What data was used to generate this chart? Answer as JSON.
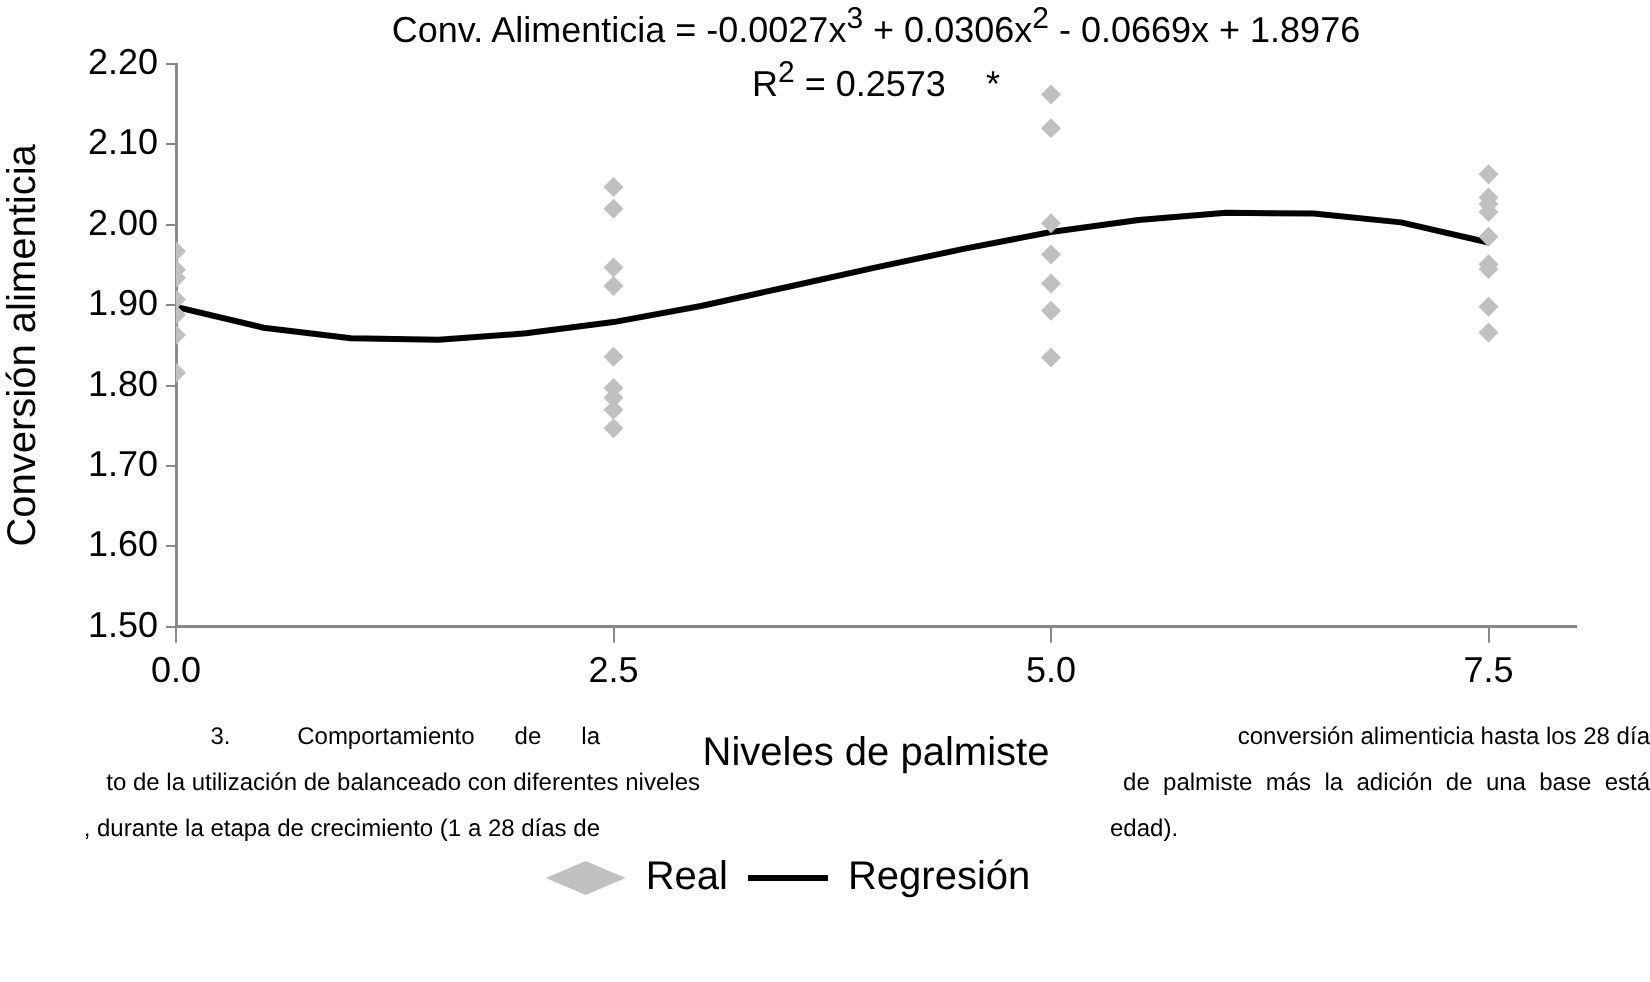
{
  "chart_data": {
    "type": "scatter",
    "title": "Conv. Alimenticia = -0.0027x$^{3}$ + 0.0306x$^{2}$ - 0.0669x + 1.8976",
    "subtitle": "R$^{2}$ = 0.2573    *",
    "xlabel": "Niveles de palmiste",
    "ylabel": "Conversión alimenticia",
    "xlim": [
      0,
      8
    ],
    "xticks": [
      {
        "value": 0,
        "label": "0.0"
      },
      2.5,
      {
        "value": 5,
        "label": "5.0"
      },
      7.5
    ],
    "ylim": [
      1.5,
      2.2
    ],
    "yticks": [
      {
        "value": 1.5,
        "label": "1.50"
      },
      {
        "value": 1.6,
        "label": "1.60"
      },
      {
        "value": 1.7,
        "label": "1.70"
      },
      {
        "value": 1.8,
        "label": "1.80"
      },
      {
        "value": 1.9,
        "label": "1.90"
      },
      {
        "value": 2.0,
        "label": "2.00"
      },
      {
        "value": 2.1,
        "label": "2.10"
      },
      {
        "value": 2.2,
        "label": "2.20"
      }
    ],
    "legend": "bottom",
    "series": [
      {
        "name": "Real",
        "type": "scatter",
        "marker": "diamond",
        "color": "#c0c0c0",
        "x": [
          0,
          0,
          0,
          0,
          0,
          0,
          0,
          2.5,
          2.5,
          2.5,
          2.5,
          2.5,
          2.5,
          2.5,
          2.5,
          2.5,
          5,
          5,
          5,
          5,
          5,
          5,
          5,
          7.5,
          7.5,
          7.5,
          7.5,
          7.5,
          7.5,
          7.5,
          7.5,
          7.5
        ],
        "values": [
          1.967,
          1.944,
          1.934,
          1.907,
          1.888,
          1.863,
          1.816,
          2.047,
          2.02,
          1.947,
          1.924,
          1.836,
          1.797,
          1.785,
          1.77,
          1.747,
          2.162,
          2.12,
          2.002,
          1.963,
          1.927,
          1.893,
          1.835,
          2.063,
          2.034,
          2.026,
          2.016,
          1.985,
          1.951,
          1.945,
          1.898,
          1.866
        ]
      },
      {
        "name": "Regresión",
        "type": "line",
        "marker": "none",
        "line_style": "solid",
        "color": "#000000",
        "x": [
          0,
          0.5,
          1,
          1.5,
          2,
          2.5,
          3,
          3.5,
          4,
          4.5,
          5,
          5.5,
          6,
          6.5,
          7,
          7.5
        ],
        "values": [
          1.898,
          1.872,
          1.859,
          1.857,
          1.865,
          1.879,
          1.899,
          1.923,
          1.947,
          1.97,
          1.991,
          2.006,
          2.015,
          2.014,
          2.003,
          1.978
        ]
      }
    ],
    "annotations": [
      "3.          Comportamiento      de      la",
      "conversión alimenticia hasta los 28 día",
      "to de la utilización de balanceado con diferentes niveles",
      "de  palmiste  más  la  adición  de  una  base  está",
      ", durante la etapa de crecimiento (1 a 28 días de",
      "edad)."
    ]
  }
}
